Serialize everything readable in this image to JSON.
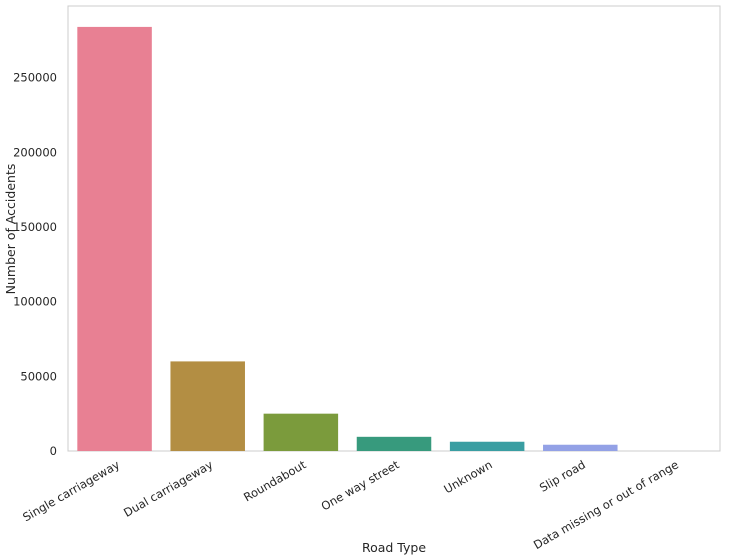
{
  "chart_data": {
    "type": "bar",
    "title": "",
    "xlabel": "Road Type",
    "ylabel": "Number of Accidents",
    "categories": [
      "Single carriageway",
      "Dual carriageway",
      "Roundabout",
      "One way street",
      "Unknown",
      "Slip road",
      "Data missing or out of range"
    ],
    "values": [
      284000,
      60000,
      25000,
      9500,
      6200,
      4200,
      0
    ],
    "colors": [
      "#e88093",
      "#b38e43",
      "#7b9b3c",
      "#379a7d",
      "#3a9ea2",
      "#93a1e6",
      "#d58ae6"
    ],
    "ylim": [
      0,
      298000
    ],
    "yticks": [
      0,
      50000,
      100000,
      150000,
      200000,
      250000
    ],
    "grid": false,
    "x_tick_rotation": 30
  }
}
